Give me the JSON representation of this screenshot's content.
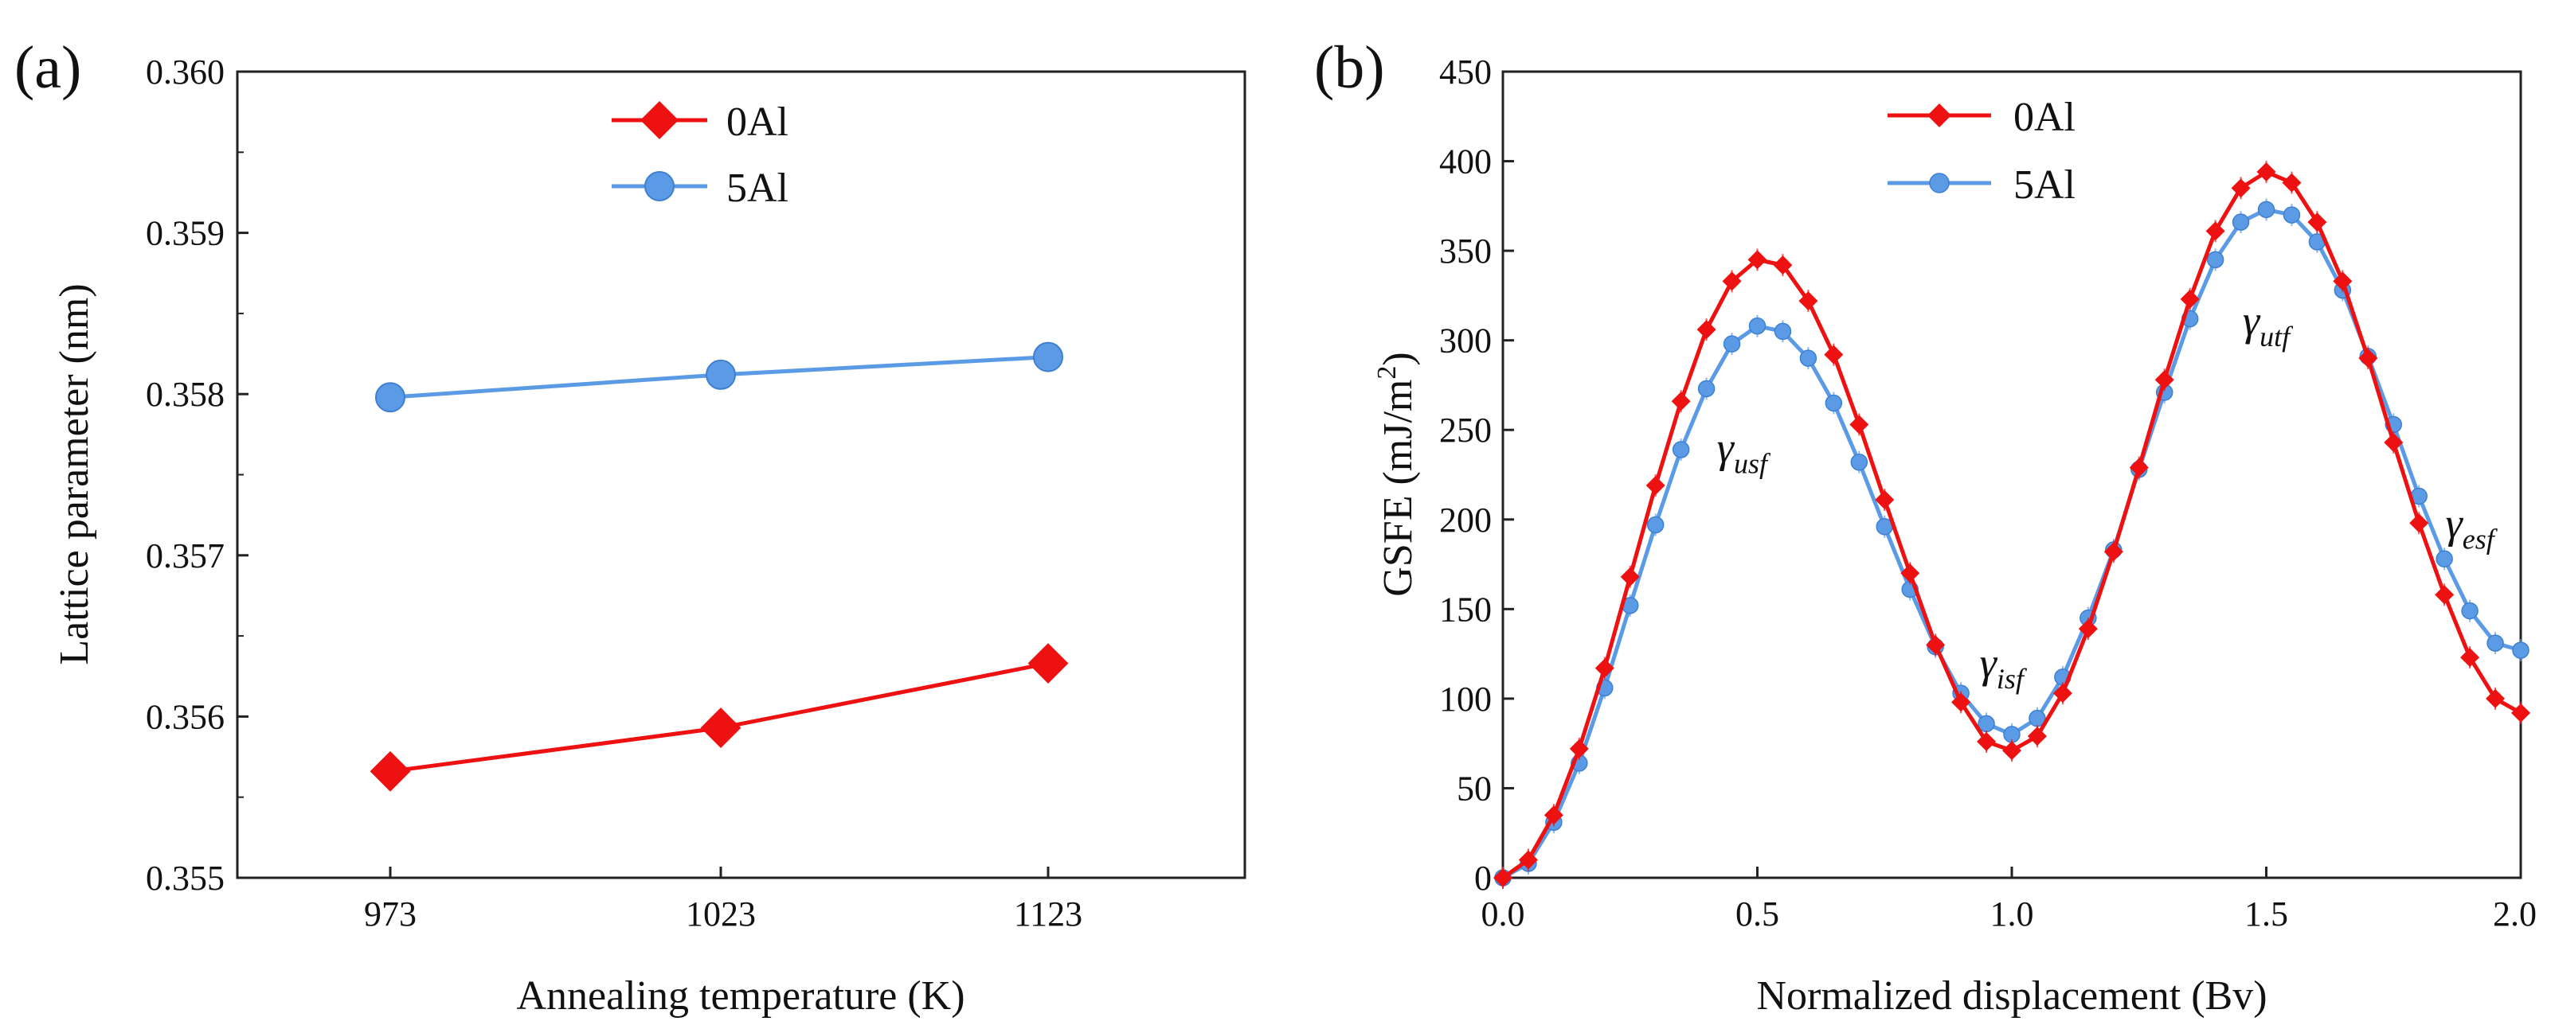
{
  "chart_data": [
    {
      "type": "line",
      "panel_label": "(a)",
      "xlabel": "Annealing temperature (K)",
      "ylabel": "Lattice parameter (nm)",
      "categories": [
        "973",
        "1023",
        "1123"
      ],
      "ylim": [
        0.355,
        0.36
      ],
      "yticks": [
        "0.355",
        "0.356",
        "0.357",
        "0.358",
        "0.359",
        "0.360"
      ],
      "legend_position": "top-center",
      "series": [
        {
          "name": "0Al",
          "color": "#ee1111",
          "marker": "diamond",
          "values": [
            0.35566,
            0.35593,
            0.35633
          ]
        },
        {
          "name": "5Al",
          "color": "#5b9be6",
          "marker": "circle",
          "values": [
            0.35798,
            0.35812,
            0.35823
          ]
        }
      ]
    },
    {
      "type": "line",
      "panel_label": "(b)",
      "xlabel": "Normalized displacement (Bv)",
      "ylabel_main": "GSFE (mJ/m",
      "ylabel_sup": "2",
      "ylabel_close": ")",
      "xlim": [
        0.0,
        2.0
      ],
      "ylim": [
        0,
        450
      ],
      "xticks": [
        "0.0",
        "0.5",
        "1.0",
        "1.5",
        "2.0"
      ],
      "yticks": [
        "0",
        "50",
        "100",
        "150",
        "200",
        "250",
        "300",
        "350",
        "400",
        "450"
      ],
      "legend_position": "top-center",
      "x": [
        0.0,
        0.05,
        0.1,
        0.15,
        0.2,
        0.25,
        0.3,
        0.35,
        0.4,
        0.45,
        0.5,
        0.55,
        0.6,
        0.65,
        0.7,
        0.75,
        0.8,
        0.85,
        0.9,
        0.95,
        1.0,
        1.05,
        1.1,
        1.15,
        1.2,
        1.25,
        1.3,
        1.35,
        1.4,
        1.45,
        1.5,
        1.55,
        1.6,
        1.65,
        1.7,
        1.75,
        1.8,
        1.85,
        1.9,
        1.95,
        2.0
      ],
      "series": [
        {
          "name": "0Al",
          "color": "#ee1111",
          "marker": "diamond",
          "values": [
            0,
            10,
            35,
            72,
            117,
            168,
            219,
            266,
            306,
            333,
            345,
            342,
            322,
            292,
            253,
            211,
            170,
            130,
            98,
            76,
            71,
            79,
            103,
            139,
            182,
            229,
            278,
            323,
            361,
            385,
            394,
            388,
            366,
            333,
            290,
            243,
            198,
            158,
            123,
            100,
            92
          ]
        },
        {
          "name": "5Al",
          "color": "#5b9be6",
          "marker": "circle",
          "values": [
            0,
            8,
            31,
            64,
            106,
            152,
            197,
            239,
            273,
            298,
            308,
            305,
            290,
            265,
            232,
            196,
            161,
            129,
            103,
            86,
            80,
            89,
            112,
            145,
            183,
            228,
            271,
            312,
            345,
            366,
            373,
            370,
            355,
            328,
            291,
            253,
            213,
            178,
            149,
            131,
            127
          ]
        }
      ],
      "annotations": [
        {
          "main": "γ",
          "sub": "usf",
          "x": 0.47,
          "y": 232
        },
        {
          "main": "γ",
          "sub": "isf",
          "x": 0.98,
          "y": 112
        },
        {
          "main": "γ",
          "sub": "utf",
          "x": 1.5,
          "y": 303
        },
        {
          "main": "γ",
          "sub": "esf",
          "x": 1.9,
          "y": 190
        }
      ]
    }
  ]
}
